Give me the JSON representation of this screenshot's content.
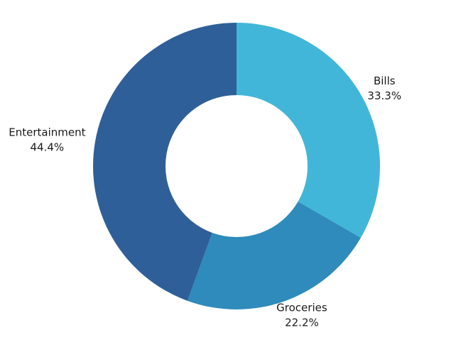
{
  "chart_data": {
    "type": "pie",
    "variant": "donut",
    "title": "",
    "start": "top",
    "direction": "clockwise",
    "slices": [
      {
        "label": "Bills",
        "value": 33.3,
        "value_label": "33.3%",
        "color": "#42b6d8"
      },
      {
        "label": "Groceries",
        "value": 22.2,
        "value_label": "22.2%",
        "color": "#2e8bbb"
      },
      {
        "label": "Entertainment",
        "value": 44.4,
        "value_label": "44.4%",
        "color": "#2f5f98"
      }
    ]
  }
}
